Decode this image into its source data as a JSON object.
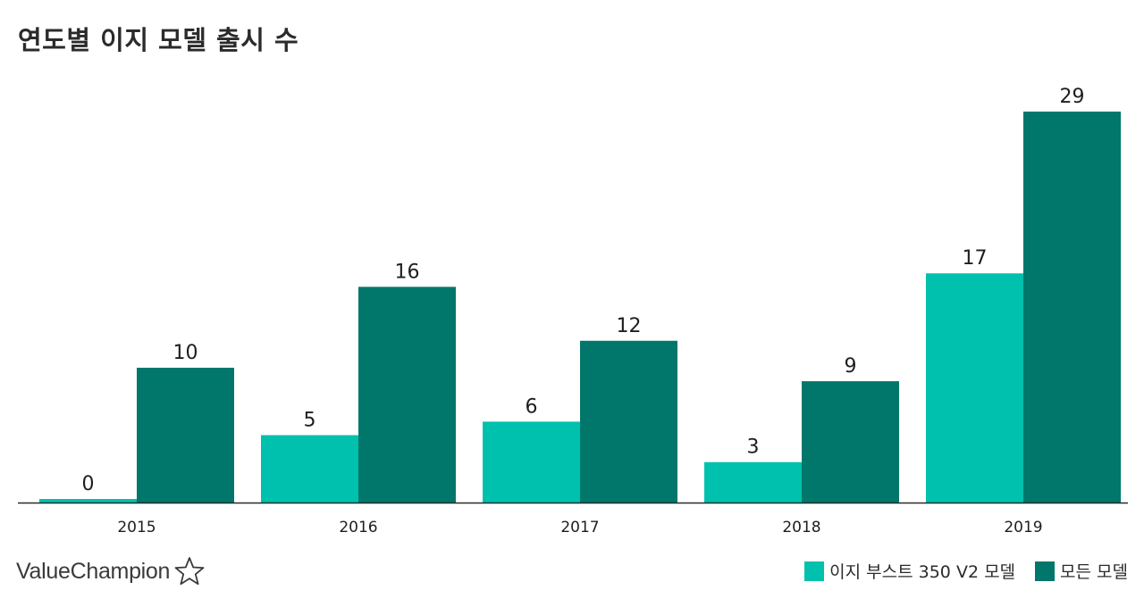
{
  "chart_data": {
    "type": "bar",
    "title": "연도별 이지 모델 출시 수",
    "categories": [
      "2015",
      "2016",
      "2017",
      "2018",
      "2019"
    ],
    "series": [
      {
        "name": "이지 부스트 350 V2 모델",
        "color": "#00c1ad",
        "values": [
          0,
          5,
          6,
          3,
          17
        ]
      },
      {
        "name": "모든 모델",
        "color": "#00776a",
        "values": [
          10,
          16,
          12,
          9,
          29
        ]
      }
    ],
    "ylim": [
      0,
      29
    ],
    "xlabel": "",
    "ylabel": "",
    "grid": false,
    "legend": "bottom-right"
  },
  "brand": {
    "name": "ValueChampion",
    "icon": "star-outline-icon"
  }
}
